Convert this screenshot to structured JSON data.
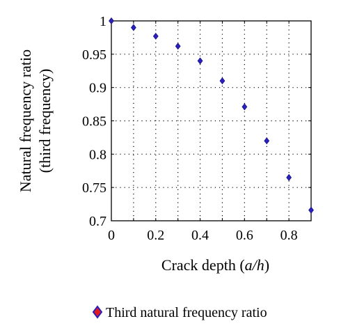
{
  "chart_data": {
    "type": "scatter",
    "xlabel_prefix": "Crack depth (",
    "xlabel_var": "a/h",
    "xlabel_suffix": ")",
    "ylabel_line1": "Natural frequency ratio",
    "ylabel_line2": "(third frequency)",
    "xlim": [
      0,
      0.9
    ],
    "ylim": [
      0.7,
      1.0
    ],
    "x_ticks": [
      "0",
      "0.2",
      "0.4",
      "0.6",
      "0.8"
    ],
    "x_tick_values": [
      0,
      0.2,
      0.4,
      0.6,
      0.8
    ],
    "y_ticks": [
      "0.7",
      "0.75",
      "0.8",
      "0.85",
      "0.9",
      "0.95",
      "1"
    ],
    "y_tick_values": [
      0.7,
      0.75,
      0.8,
      0.85,
      0.9,
      0.95,
      1.0
    ],
    "grid_x": [
      0.1,
      0.2,
      0.3,
      0.4,
      0.5,
      0.6,
      0.7,
      0.8
    ],
    "grid_y": [
      0.75,
      0.8,
      0.85,
      0.9,
      0.95
    ],
    "grid": true,
    "legend_position": "bottom",
    "series": [
      {
        "name": "Third natural frequency ratio",
        "marker": "diamond",
        "color": "#2a1fbf",
        "edge_color": "#1a1480",
        "legend_fill": "#e21b1b",
        "legend_edge": "#2a1fbf",
        "x": [
          0,
          0.1,
          0.2,
          0.3,
          0.4,
          0.5,
          0.6,
          0.7,
          0.8,
          0.9
        ],
        "y": [
          1.0,
          0.99,
          0.977,
          0.962,
          0.94,
          0.91,
          0.871,
          0.82,
          0.765,
          0.716
        ]
      }
    ]
  }
}
